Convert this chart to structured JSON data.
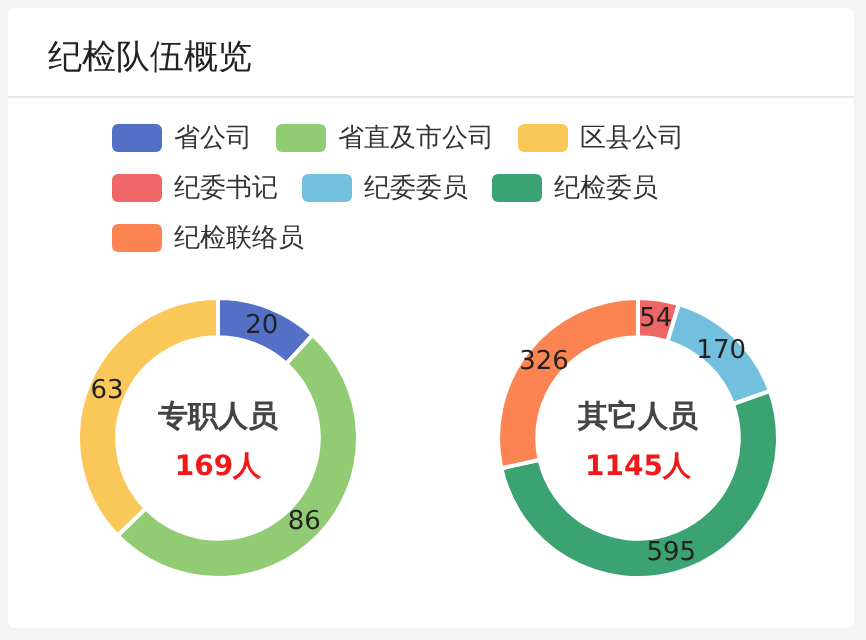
{
  "chart_data": [
    {
      "type": "donut",
      "title": "纪检队伍概览",
      "categories": [
        "省公司",
        "省直及市公司",
        "区县公司"
      ],
      "values": [
        20,
        86,
        63
      ],
      "colors": [
        "#5470c6",
        "#91cc75",
        "#fac858"
      ],
      "data_labels": true,
      "legend": "top",
      "annotations": [
        "专职人员",
        "169人"
      ]
    },
    {
      "type": "donut",
      "categories": [
        "纪委书记",
        "纪委委员",
        "纪检委员",
        "纪检联络员"
      ],
      "values": [
        54,
        170,
        595,
        326
      ],
      "colors": [
        "#ee6666",
        "#73c0de",
        "#3ba272",
        "#fc8452"
      ],
      "data_labels": true,
      "legend": "top",
      "annotations": [
        "其它人员",
        "1145人"
      ]
    }
  ]
}
